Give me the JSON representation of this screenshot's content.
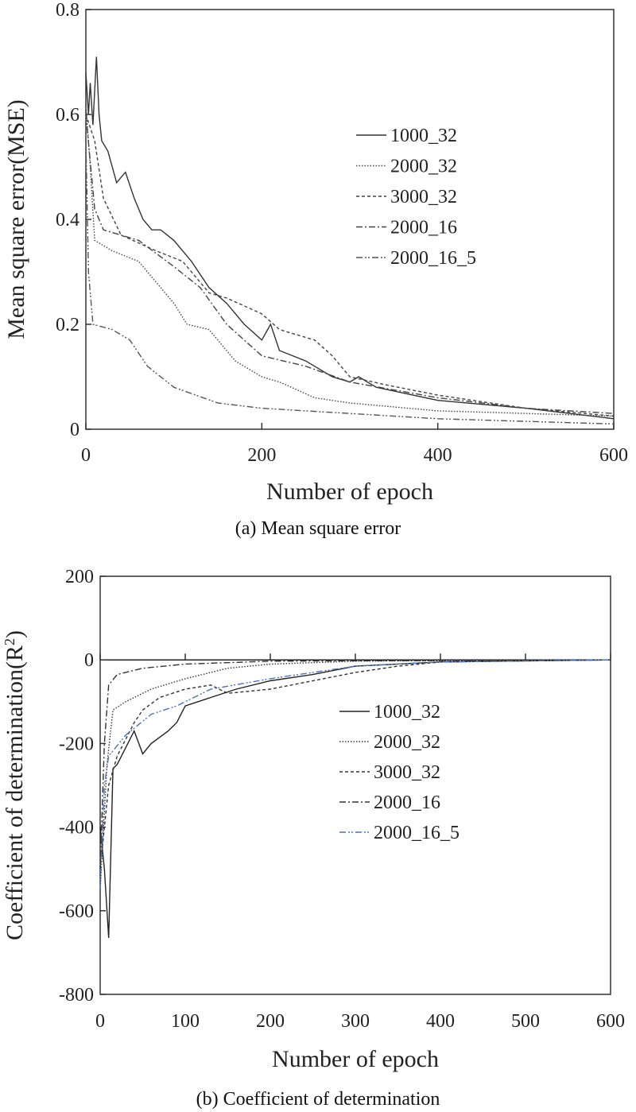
{
  "chart_data": [
    {
      "type": "line",
      "caption": "(a) Mean square error",
      "xlabel": "Number of epoch",
      "ylabel": "Mean square error(MSE)",
      "xlim": [
        0,
        600
      ],
      "ylim": [
        0,
        0.8
      ],
      "xticks": [
        0,
        200,
        400,
        600
      ],
      "yticks": [
        0,
        0.2,
        0.4,
        0.6,
        0.8
      ],
      "ytick_labels": [
        "0",
        "0.2",
        "0.4",
        "0.6",
        "0.8"
      ],
      "grid": false,
      "legend_placement": "center-right",
      "series": [
        {
          "name": "1000_32",
          "style": "solid",
          "color": "#333333",
          "x": [
            0,
            3,
            5,
            8,
            12,
            15,
            18,
            25,
            35,
            45,
            55,
            65,
            75,
            85,
            100,
            120,
            140,
            160,
            180,
            200,
            210,
            220,
            250,
            280,
            300,
            310,
            330,
            400,
            500,
            600
          ],
          "y": [
            0.68,
            0.6,
            0.66,
            0.58,
            0.71,
            0.6,
            0.55,
            0.53,
            0.47,
            0.49,
            0.44,
            0.4,
            0.38,
            0.38,
            0.36,
            0.32,
            0.27,
            0.24,
            0.2,
            0.17,
            0.2,
            0.15,
            0.13,
            0.1,
            0.09,
            0.1,
            0.08,
            0.055,
            0.04,
            0.02
          ]
        },
        {
          "name": "2000_32",
          "style": "dotted",
          "color": "#444444",
          "x": [
            0,
            5,
            10,
            30,
            60,
            80,
            100,
            115,
            140,
            170,
            200,
            220,
            260,
            300,
            400,
            600
          ],
          "y": [
            0.62,
            0.5,
            0.36,
            0.34,
            0.32,
            0.28,
            0.24,
            0.2,
            0.19,
            0.13,
            0.1,
            0.09,
            0.06,
            0.05,
            0.035,
            0.025
          ]
        },
        {
          "name": "3000_32",
          "style": "dashed",
          "color": "#444444",
          "x": [
            0,
            10,
            20,
            40,
            80,
            110,
            140,
            160,
            200,
            220,
            260,
            280,
            300,
            340,
            400,
            500,
            600
          ],
          "y": [
            0.6,
            0.55,
            0.44,
            0.37,
            0.34,
            0.32,
            0.26,
            0.25,
            0.22,
            0.19,
            0.17,
            0.14,
            0.1,
            0.085,
            0.065,
            0.04,
            0.025
          ]
        },
        {
          "name": "2000_16",
          "style": "dashdot",
          "color": "#444444",
          "x": [
            0,
            10,
            20,
            60,
            100,
            130,
            160,
            200,
            250,
            300,
            400,
            500,
            600
          ],
          "y": [
            0.6,
            0.42,
            0.38,
            0.36,
            0.31,
            0.27,
            0.2,
            0.14,
            0.12,
            0.09,
            0.06,
            0.04,
            0.03
          ]
        },
        {
          "name": "2000_16_5",
          "style": "dashdotdot",
          "color": "#555555",
          "x": [
            0,
            3,
            8,
            30,
            50,
            70,
            100,
            150,
            200,
            300,
            400,
            600
          ],
          "y": [
            0.55,
            0.3,
            0.2,
            0.19,
            0.17,
            0.12,
            0.08,
            0.05,
            0.04,
            0.03,
            0.02,
            0.01
          ]
        }
      ]
    },
    {
      "type": "line",
      "caption": "(b) Coefficient of determination",
      "xlabel": "Number of epoch",
      "ylabel": "Coefficient of determination(R",
      "ylabel_sup": "2",
      "ylabel_end": ")",
      "xlim": [
        0,
        600
      ],
      "ylim": [
        -800,
        200
      ],
      "xticks": [
        0,
        100,
        200,
        300,
        400,
        500,
        600
      ],
      "yticks": [
        200,
        0,
        -200,
        -400,
        -600,
        -800
      ],
      "grid": false,
      "legend_placement": "center",
      "series": [
        {
          "name": "1000_32",
          "style": "solid",
          "color": "#222222",
          "x": [
            0,
            5,
            10,
            15,
            20,
            30,
            40,
            50,
            60,
            80,
            90,
            100,
            130,
            160,
            200,
            250,
            300,
            400,
            600
          ],
          "y": [
            -400,
            -500,
            -665,
            -260,
            -250,
            -210,
            -170,
            -225,
            -200,
            -170,
            -150,
            -110,
            -90,
            -70,
            -50,
            -35,
            -15,
            -5,
            0
          ]
        },
        {
          "name": "2000_32",
          "style": "dotted",
          "color": "#333333",
          "x": [
            0,
            8,
            15,
            30,
            60,
            100,
            150,
            200,
            300,
            600
          ],
          "y": [
            -550,
            -250,
            -120,
            -100,
            -70,
            -45,
            -20,
            -10,
            -3,
            0
          ]
        },
        {
          "name": "3000_32",
          "style": "dashed",
          "color": "#333333",
          "x": [
            0,
            10,
            20,
            40,
            50,
            70,
            100,
            130,
            150,
            200,
            250,
            300,
            350,
            400,
            600
          ],
          "y": [
            -500,
            -300,
            -230,
            -150,
            -120,
            -90,
            -70,
            -60,
            -80,
            -70,
            -50,
            -30,
            -15,
            -5,
            0
          ]
        },
        {
          "name": "2000_16",
          "style": "dashdot",
          "color": "#333333",
          "x": [
            0,
            5,
            10,
            20,
            50,
            100,
            200,
            600
          ],
          "y": [
            -500,
            -200,
            -60,
            -35,
            -20,
            -10,
            -3,
            0
          ]
        },
        {
          "name": "2000_16_5",
          "style": "dashdotdot",
          "color": "#4a72b8",
          "x": [
            0,
            5,
            10,
            30,
            60,
            90,
            130,
            200,
            300,
            400,
            600
          ],
          "y": [
            -550,
            -300,
            -230,
            -180,
            -130,
            -110,
            -70,
            -45,
            -15,
            -5,
            0
          ]
        }
      ]
    }
  ]
}
